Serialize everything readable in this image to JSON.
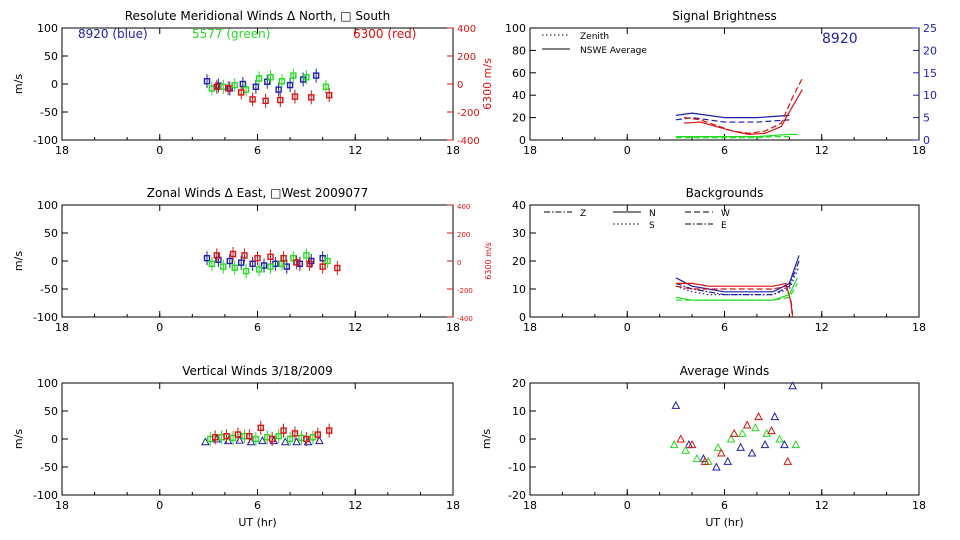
{
  "colors": {
    "blue": "#1f1fb0",
    "green": "#22dd22",
    "red": "#dd1111",
    "axis": "#000000"
  },
  "chart_data": [
    {
      "id": "meridional",
      "type": "scatter",
      "title": "Resolute Meridional Winds Δ North, □ South",
      "ylabel": "m/s",
      "ylabel_right": "6300 m/s",
      "ylim": [
        -100,
        100
      ],
      "yticks": [
        "100",
        "50",
        "0",
        "-50",
        "-100"
      ],
      "ylim_right": [
        -400,
        400
      ],
      "yticks_right": [
        "400",
        "200",
        "0",
        "-200",
        "-400"
      ],
      "xticks": [
        "18",
        "0",
        "6",
        "12",
        "18"
      ],
      "xlabel": "",
      "annotations": [
        "8920 (blue)",
        "5577 (green)",
        "6300 (red)"
      ],
      "series": [
        {
          "name": "8920",
          "color": "blue",
          "x": [
            2.9,
            3.6,
            4.3,
            5.1,
            5.9,
            6.6,
            7.3,
            8.0,
            8.8,
            9.6
          ],
          "y": [
            5,
            -3,
            -8,
            0,
            -5,
            4,
            -10,
            -2,
            8,
            15
          ]
        },
        {
          "name": "5577",
          "color": "green",
          "x": [
            3.2,
            3.9,
            4.6,
            5.3,
            6.1,
            6.8,
            7.5,
            8.2,
            9.0,
            10.2
          ],
          "y": [
            -8,
            -5,
            -2,
            -10,
            10,
            12,
            5,
            15,
            12,
            -5
          ]
        },
        {
          "name": "6300",
          "color": "red",
          "x": [
            3.5,
            4.2,
            5.0,
            5.7,
            6.5,
            7.4,
            8.3,
            9.3,
            10.4
          ],
          "y": [
            -20,
            -30,
            -60,
            -110,
            -120,
            -115,
            -90,
            -95,
            -80
          ]
        }
      ]
    },
    {
      "id": "brightness",
      "type": "line",
      "title": "Signal Brightness",
      "ylim": [
        0,
        100
      ],
      "yticks": [
        "100",
        "80",
        "60",
        "40",
        "20",
        "0"
      ],
      "ylim_right": [
        0,
        25
      ],
      "yticks_right": [
        "25",
        "20",
        "15",
        "10",
        "5",
        "0"
      ],
      "xticks": [
        "18",
        "0",
        "6",
        "12",
        "18"
      ],
      "xlabel": "",
      "legend": [
        "Zenith",
        "NSWE Average"
      ],
      "annotations": [
        "8920"
      ],
      "series": [
        {
          "color": "blue",
          "style": "solid",
          "x": [
            3,
            4,
            5,
            6,
            7,
            8,
            9,
            10
          ],
          "y": [
            22,
            24,
            22,
            20,
            20,
            20,
            21,
            22
          ]
        },
        {
          "color": "blue",
          "style": "dashed",
          "x": [
            3,
            4,
            5,
            6,
            7,
            8,
            9,
            10
          ],
          "y": [
            18,
            20,
            18,
            16,
            16,
            16,
            17,
            18
          ]
        },
        {
          "color": "red",
          "style": "solid",
          "x": [
            3.5,
            4.5,
            5.5,
            6.5,
            7.5,
            8.5,
            9.5,
            10.2,
            10.8
          ],
          "y": [
            15,
            16,
            12,
            8,
            5,
            6,
            12,
            30,
            45
          ]
        },
        {
          "color": "red",
          "style": "dashed",
          "x": [
            3.5,
            4.5,
            5.5,
            6.5,
            7.5,
            8.5,
            9.5,
            10.2,
            10.8
          ],
          "y": [
            20,
            18,
            13,
            8,
            6,
            8,
            15,
            38,
            55
          ]
        },
        {
          "color": "green",
          "style": "solid",
          "x": [
            3,
            4,
            5,
            6,
            7,
            8,
            9,
            10,
            10.5
          ],
          "y": [
            3,
            3,
            3,
            3,
            3,
            3,
            4,
            5,
            5
          ]
        },
        {
          "color": "green",
          "style": "dashed",
          "x": [
            3,
            4,
            5,
            6,
            7,
            8,
            9,
            10
          ],
          "y": [
            2,
            2,
            2,
            2,
            2,
            2,
            3,
            3
          ]
        }
      ]
    },
    {
      "id": "zonal",
      "type": "scatter",
      "title": "Zonal Winds Δ East, □West 2009077",
      "ylabel": "m/s",
      "ylabel_right": "6300 m/s",
      "ylim": [
        -100,
        100
      ],
      "yticks": [
        "100",
        "50",
        "0",
        "-50",
        "-100"
      ],
      "ylim_right": [
        -400,
        400
      ],
      "yticks_right": [
        "400",
        "200",
        "0",
        "-200",
        "-400"
      ],
      "xticks": [
        "18",
        "0",
        "6",
        "12",
        "18"
      ],
      "xlabel": "",
      "series": [
        {
          "name": "8920",
          "color": "blue",
          "x": [
            2.9,
            3.6,
            4.3,
            5.0,
            5.7,
            6.4,
            7.1,
            7.8,
            8.6,
            9.3,
            10.0
          ],
          "y": [
            5,
            2,
            0,
            -3,
            -5,
            -8,
            -5,
            -10,
            -5,
            0,
            5
          ]
        },
        {
          "name": "5577",
          "color": "green",
          "x": [
            3.2,
            3.9,
            4.6,
            5.3,
            6.1,
            6.8,
            7.5,
            8.2,
            9.0,
            10.3
          ],
          "y": [
            -5,
            -10,
            -12,
            -18,
            -15,
            -10,
            -5,
            5,
            10,
            0
          ]
        },
        {
          "name": "6300",
          "color": "red",
          "x": [
            3.5,
            4.5,
            5.2,
            6.0,
            6.8,
            7.6,
            8.4,
            9.2,
            10.0,
            10.9
          ],
          "y": [
            40,
            50,
            40,
            20,
            30,
            20,
            -10,
            -20,
            -40,
            -50
          ]
        }
      ]
    },
    {
      "id": "backgrounds",
      "type": "line",
      "title": "Backgrounds",
      "ylim": [
        0,
        40
      ],
      "yticks": [
        "40",
        "30",
        "20",
        "10",
        "0"
      ],
      "xticks": [
        "18",
        "0",
        "6",
        "12",
        "18"
      ],
      "xlabel": "",
      "legend": [
        "Z",
        "N",
        "W",
        "S",
        "E"
      ],
      "series": [
        {
          "color": "blue",
          "style": "solid",
          "x": [
            3,
            4,
            5,
            6,
            7,
            8,
            9,
            10,
            10.6
          ],
          "y": [
            14,
            11,
            10,
            9,
            9,
            9,
            9,
            12,
            22
          ]
        },
        {
          "color": "blue",
          "style": "dashdot",
          "x": [
            3,
            4,
            5,
            6,
            7,
            8,
            9,
            10,
            10.6
          ],
          "y": [
            12,
            10,
            9,
            8,
            8,
            8,
            8,
            11,
            20
          ]
        },
        {
          "color": "blue",
          "style": "dotted",
          "x": [
            3,
            4,
            5,
            6,
            7,
            8,
            9,
            10,
            10.6
          ],
          "y": [
            11,
            9,
            8,
            8,
            8,
            8,
            8,
            10,
            18
          ]
        },
        {
          "color": "red",
          "style": "solid",
          "x": [
            3,
            4,
            5,
            6,
            7,
            8,
            9,
            9.8,
            10.1,
            10.2
          ],
          "y": [
            12,
            12,
            11,
            11,
            11,
            11,
            11,
            12,
            5,
            0
          ]
        },
        {
          "color": "red",
          "style": "dashed",
          "x": [
            3,
            4,
            5,
            6,
            7,
            8,
            9,
            9.8,
            10.1,
            10.2
          ],
          "y": [
            11,
            10,
            10,
            10,
            10,
            10,
            10,
            11,
            6,
            1
          ]
        },
        {
          "color": "green",
          "style": "solid",
          "x": [
            3,
            4,
            5,
            6,
            7,
            8,
            9,
            10,
            10.5
          ],
          "y": [
            7,
            6,
            6,
            6,
            6,
            6,
            6,
            8,
            14
          ]
        },
        {
          "color": "green",
          "style": "dashed",
          "x": [
            3,
            4,
            5,
            6,
            7,
            8,
            9,
            10,
            10.5
          ],
          "y": [
            6,
            6,
            6,
            6,
            6,
            6,
            6,
            7,
            12
          ]
        }
      ]
    },
    {
      "id": "vertical",
      "type": "scatter",
      "title": "Vertical Winds 3/18/2009",
      "ylabel": "m/s",
      "ylim": [
        -100,
        100
      ],
      "yticks": [
        "100",
        "50",
        "0",
        "-50",
        "-100"
      ],
      "xticks": [
        "18",
        "0",
        "6",
        "12",
        "18"
      ],
      "xlabel": "UT (hr)",
      "series": [
        {
          "name": "8920",
          "color": "blue",
          "x": [
            2.8,
            3.5,
            4.2,
            4.9,
            5.6,
            6.3,
            7.0,
            7.7,
            8.4,
            9.1,
            9.8
          ],
          "y": [
            -5,
            0,
            -3,
            -2,
            -5,
            -3,
            -3,
            -5,
            -5,
            -5,
            -3
          ]
        },
        {
          "name": "5577",
          "color": "green",
          "x": [
            3.1,
            3.8,
            4.5,
            5.2,
            5.9,
            6.6,
            7.3,
            8.0,
            8.7,
            9.4
          ],
          "y": [
            0,
            3,
            2,
            5,
            0,
            3,
            5,
            0,
            2,
            3
          ]
        },
        {
          "name": "6300",
          "color": "red",
          "x": [
            3.4,
            4.1,
            4.8,
            5.5,
            6.2,
            6.9,
            7.6,
            8.3,
            9.0,
            9.7,
            10.4
          ],
          "y": [
            3,
            5,
            8,
            5,
            20,
            0,
            15,
            10,
            0,
            8,
            15
          ]
        }
      ]
    },
    {
      "id": "average",
      "type": "scatter",
      "title": "Average Winds",
      "ylabel": "m/s",
      "ylim": [
        -20,
        20
      ],
      "yticks": [
        "20",
        "10",
        "0",
        "-10",
        "-20"
      ],
      "xticks": [
        "18",
        "0",
        "6",
        "12",
        "18"
      ],
      "xlabel": "UT (hr)",
      "series": [
        {
          "name": "8920",
          "color": "blue",
          "x": [
            3.0,
            3.8,
            4.7,
            5.5,
            6.2,
            7.0,
            7.7,
            8.5,
            9.1,
            9.7,
            10.2
          ],
          "y": [
            12,
            -2,
            -7,
            -10,
            -8,
            -3,
            -5,
            -2,
            8,
            -2,
            19
          ]
        },
        {
          "name": "5577",
          "color": "green",
          "x": [
            2.9,
            3.6,
            4.3,
            5.0,
            5.6,
            6.4,
            7.1,
            7.9,
            8.6,
            9.4,
            10.4
          ],
          "y": [
            -2,
            -4,
            -7,
            -8,
            -3,
            0,
            2,
            4,
            2,
            0,
            -2
          ]
        },
        {
          "name": "6300",
          "color": "red",
          "x": [
            3.3,
            4.0,
            4.8,
            5.8,
            6.6,
            7.4,
            8.1,
            8.9,
            9.9
          ],
          "y": [
            0,
            -2,
            -8,
            -5,
            2,
            5,
            8,
            3,
            -8
          ]
        }
      ]
    }
  ]
}
